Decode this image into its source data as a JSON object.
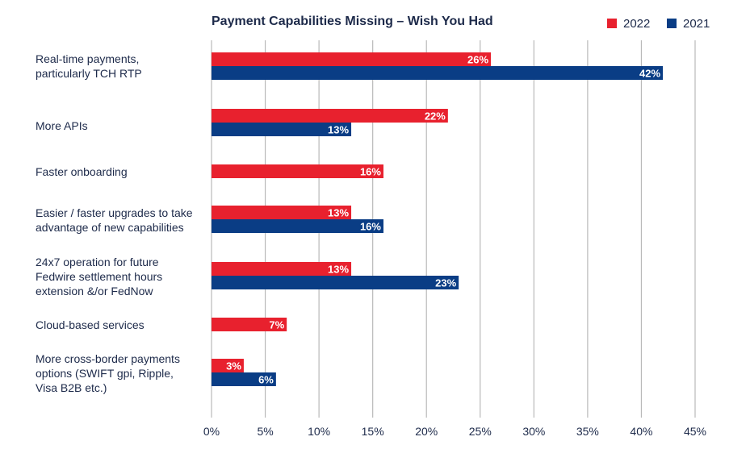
{
  "chart_data": {
    "type": "bar",
    "orientation": "horizontal",
    "title": "Payment Capabilities Missing – Wish You Had",
    "categories": [
      "Real-time payments, particularly TCH RTP",
      "More APIs",
      "Faster onboarding",
      "Easier / faster upgrades to take advantage of new capabilities",
      "24x7 operation for future Fedwire settlement hours extension &/or FedNow",
      "Cloud-based services",
      "More cross-border payments options (SWIFT gpi, Ripple, Visa B2B etc.)"
    ],
    "category_lines": [
      [
        "Real-time payments,",
        "particularly TCH RTP"
      ],
      [
        "More APIs"
      ],
      [
        "Faster onboarding"
      ],
      [
        "Easier / faster upgrades to take",
        "advantage of new capabilities"
      ],
      [
        "24x7 operation for future",
        "Fedwire settlement hours",
        "extension &/or FedNow"
      ],
      [
        "Cloud-based services"
      ],
      [
        "More cross-border payments",
        "options (SWIFT gpi, Ripple,",
        "Visa B2B etc.)"
      ]
    ],
    "series": [
      {
        "name": "2022",
        "color": "#e8212e",
        "values": [
          26,
          22,
          16,
          13,
          13,
          7,
          3
        ]
      },
      {
        "name": "2021",
        "color": "#0a3d85",
        "values": [
          42,
          13,
          null,
          16,
          23,
          null,
          6
        ]
      }
    ],
    "value_suffix": "%",
    "xlim": [
      0,
      45
    ],
    "xticks": [
      0,
      5,
      10,
      15,
      20,
      25,
      30,
      35,
      40,
      45
    ],
    "xtick_labels": [
      "0%",
      "5%",
      "10%",
      "15%",
      "20%",
      "25%",
      "30%",
      "35%",
      "40%",
      "45%"
    ],
    "grid": true,
    "legend_position": "top-right"
  }
}
